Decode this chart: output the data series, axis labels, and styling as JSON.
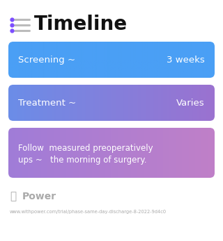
{
  "title": "Timeline",
  "title_fontsize": 20,
  "title_color": "#111111",
  "background_color": "#ffffff",
  "icon_dot_color": "#7c4dff",
  "icon_line_color": "#9e9e9e",
  "boxes": [
    {
      "label_left": "Screening ~",
      "label_right": "3 weeks",
      "color_left": "#4a9ff5",
      "color_right": "#4a9ff5",
      "text_size": 9.5
    },
    {
      "label_left": "Treatment ~",
      "label_right": "Varies",
      "color_left": "#6b8de8",
      "color_right": "#9b72d0",
      "text_size": 9.5
    },
    {
      "label_left": "Follow  measured preoperatively\nups ~   the morning of surgery.",
      "label_right": "",
      "color_left": "#a07cd8",
      "color_right": "#c080c8",
      "text_size": 8.5
    }
  ],
  "footer_text": "Power",
  "footer_url": "www.withpower.com/trial/phase-same-day-discharge-8-2022-9d4c0",
  "footer_color": "#aaaaaa"
}
